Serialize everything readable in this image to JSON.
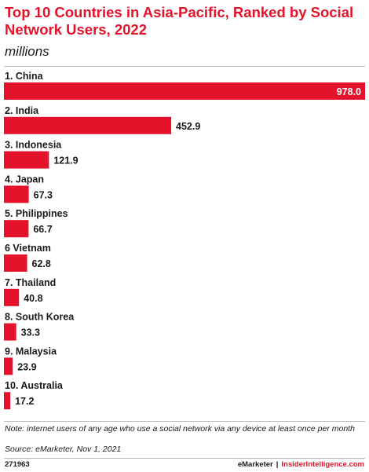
{
  "header": {
    "title": "Top 10 Countries in Asia-Pacific, Ranked by Social Network Users, 2022",
    "subtitle": "millions"
  },
  "colors": {
    "bar": "#e4132b",
    "text": "#1a1a1a",
    "inside_label": "#ffffff"
  },
  "chart_data": {
    "type": "bar",
    "orientation": "horizontal",
    "title": "Top 10 Countries in Asia-Pacific, Ranked by Social Network Users, 2022",
    "unit": "millions",
    "categories": [
      "1. China",
      "2. India",
      "3. Indonesia",
      "4. Japan",
      "5. Philippines",
      "6 Vietnam",
      "7. Thailand",
      "8. South Korea",
      "9. Malaysia",
      "10. Australia"
    ],
    "values": [
      978.0,
      452.9,
      121.9,
      67.3,
      66.7,
      62.8,
      40.8,
      33.3,
      23.9,
      17.2
    ],
    "value_labels": [
      "978.0",
      "452.9",
      "121.9",
      "67.3",
      "66.7",
      "62.8",
      "40.8",
      "33.3",
      "23.9",
      "17.2"
    ],
    "xlim": [
      0,
      978.0
    ],
    "grid": false,
    "legend": "none"
  },
  "footer": {
    "note": "Note: internet users of any age who use a social network via any device at least once per month",
    "source": "Source: eMarketer, Nov 1, 2021",
    "chart_id": "271963",
    "brand_left": "eMarketer",
    "brand_sep": "|",
    "brand_right": "InsiderIntelligence.com"
  }
}
